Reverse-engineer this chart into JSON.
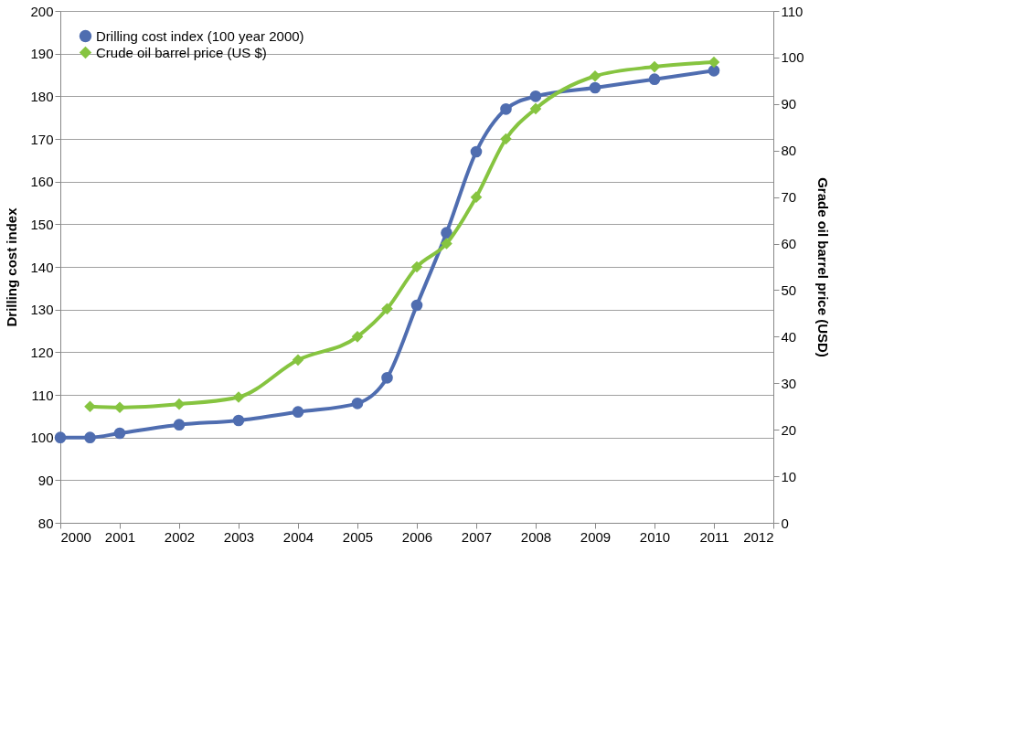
{
  "chart_data": {
    "type": "line",
    "ylabel": "Drilling cost index",
    "y2label": "Grade oil barrel price (USD)",
    "xlim": [
      2000,
      2012
    ],
    "xticks": [
      2000,
      2001,
      2002,
      2003,
      2004,
      2005,
      2006,
      2007,
      2008,
      2009,
      2010,
      2011,
      2012
    ],
    "ylim": [
      80,
      200
    ],
    "yticks": [
      80,
      90,
      100,
      110,
      120,
      130,
      140,
      150,
      160,
      170,
      180,
      190,
      200
    ],
    "y2lim": [
      0,
      110
    ],
    "y2ticks": [
      0,
      10,
      20,
      30,
      40,
      50,
      60,
      70,
      80,
      90,
      100,
      110
    ],
    "grid": "y",
    "legend": "top left",
    "series": [
      {
        "name": "Drilling cost index (100 year 2000)",
        "color": "#4f6db0",
        "marker": "circle",
        "x": [
          2000,
          2000.5,
          2001,
          2002,
          2003,
          2004,
          2005,
          2005.5,
          2006,
          2006.5,
          2007,
          2007.5,
          2008,
          2009,
          2010,
          2011
        ],
        "values": [
          100,
          100,
          101,
          103,
          104,
          106,
          108,
          114,
          131,
          148,
          167,
          177,
          180,
          182,
          184,
          186
        ]
      },
      {
        "name": "Crude oil barrel price (US $)",
        "color": "#86c440",
        "marker": "diamond",
        "axis": "y2",
        "x": [
          2000.5,
          2001,
          2002,
          2003,
          2004,
          2005,
          2005.5,
          2006,
          2006.5,
          2007,
          2007.5,
          2008,
          2009,
          2010,
          2011
        ],
        "values": [
          25,
          24.8,
          25.5,
          27,
          35,
          40,
          46,
          55,
          60,
          70,
          82.5,
          89,
          96,
          98,
          99
        ]
      }
    ]
  }
}
